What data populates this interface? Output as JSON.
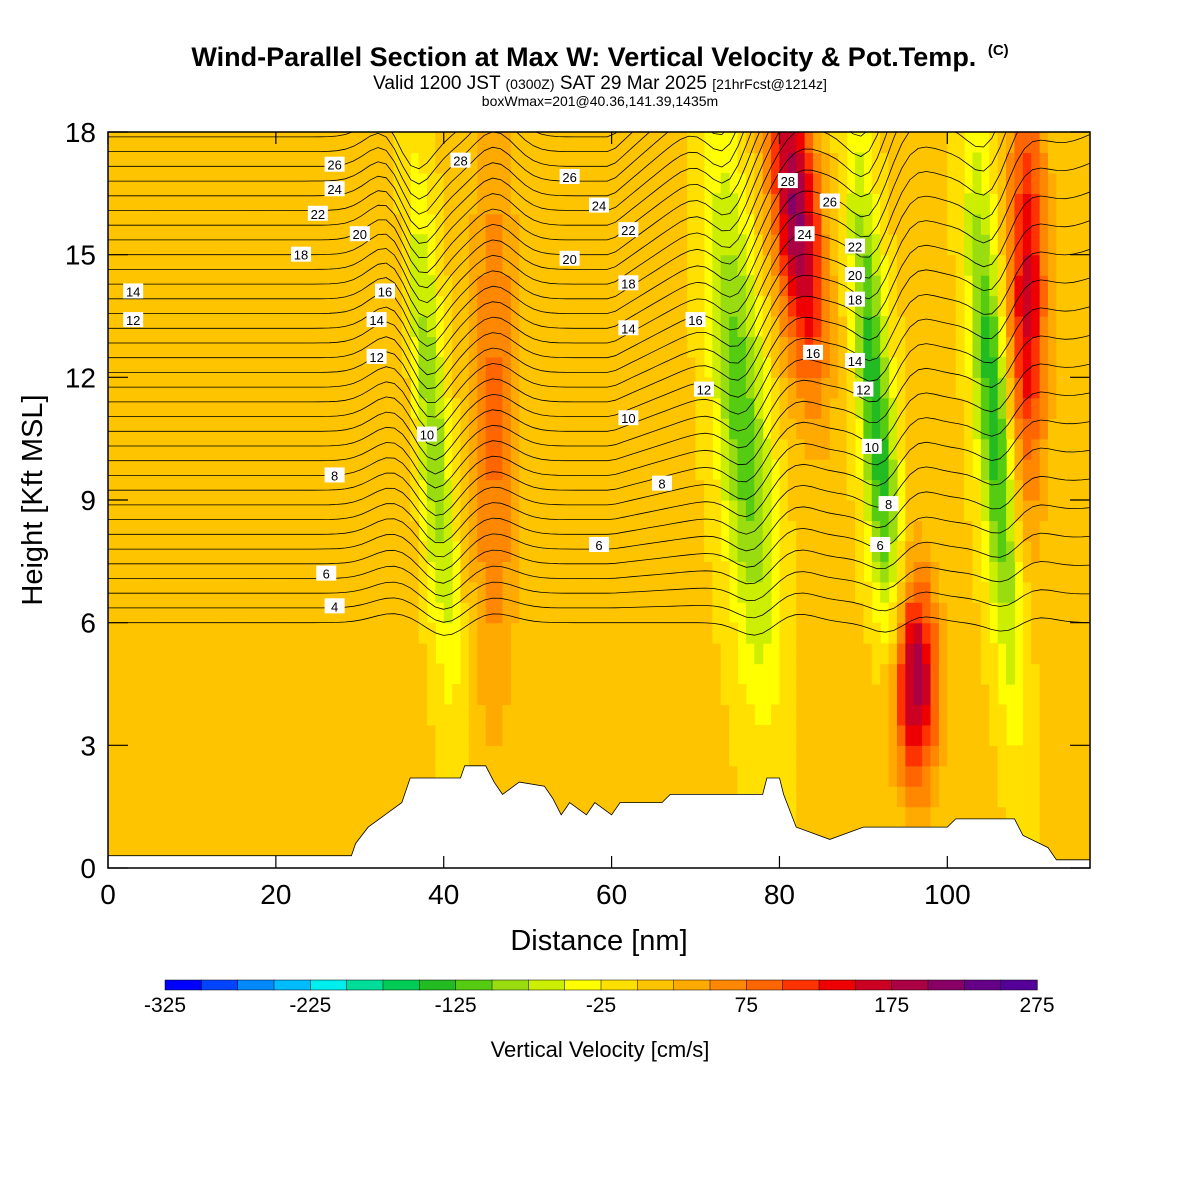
{
  "header": {
    "title": "Wind-Parallel Section at Max W: Vertical Velocity & Pot.Temp.",
    "title_mark": "(C)",
    "valid_prefix": "Valid 1200 JST",
    "valid_utc": "(0300Z)",
    "valid_date": "SAT 29 Mar 2025",
    "forecast": "[21hrFcst@1214z]",
    "boxwmax": "boxWmax=201@40.36,141.39,1435m"
  },
  "chart_data": {
    "type": "heatmap",
    "xlabel": "Distance [nm]",
    "ylabel": "Height [Kft MSL]",
    "xlim": [
      0,
      117
    ],
    "ylim": [
      0,
      18
    ],
    "x_ticks": [
      "0",
      "20",
      "40",
      "60",
      "80",
      "100"
    ],
    "x_tick_values": [
      0,
      20,
      40,
      60,
      80,
      100
    ],
    "y_ticks": [
      "0",
      "3",
      "6",
      "9",
      "12",
      "15",
      "18"
    ],
    "y_tick_values": [
      0,
      3,
      6,
      9,
      12,
      15,
      18
    ],
    "colorbar": {
      "title": "Vertical Velocity [cm/s]",
      "labels": [
        "-325",
        "-225",
        "-125",
        "-25",
        "75",
        "175",
        "275"
      ],
      "label_values": [
        -325,
        -225,
        -125,
        -25,
        75,
        175,
        275
      ],
      "range": [
        -325,
        275
      ],
      "colors": [
        "#0000ff",
        "#0044ff",
        "#0088ff",
        "#00bbff",
        "#00eeee",
        "#00dd99",
        "#00cc55",
        "#22bb22",
        "#55cc11",
        "#99dd11",
        "#ccee00",
        "#ffff00",
        "#ffe000",
        "#ffc400",
        "#ffaa00",
        "#ff8800",
        "#ff6600",
        "#ff3300",
        "#ee0000",
        "#cc0022",
        "#aa0044",
        "#880066",
        "#660088",
        "#550099"
      ]
    },
    "updraft_bands_nm": [
      {
        "x0": 32,
        "x1": 36,
        "peak": 20
      },
      {
        "x0": 44,
        "x1": 48,
        "peak": 75
      },
      {
        "x0": 80,
        "x1": 84,
        "peak": 200
      },
      {
        "x0": 94,
        "x1": 98,
        "peak": 201
      },
      {
        "x0": 108,
        "x1": 111,
        "peak": 150
      }
    ],
    "downdraft_bands_nm": [
      {
        "x0": 37,
        "x1": 40,
        "peak": -100
      },
      {
        "x0": 73,
        "x1": 78,
        "peak": -125
      },
      {
        "x0": 90,
        "x1": 93,
        "peak": -150
      },
      {
        "x0": 104,
        "x1": 107,
        "peak": -150
      }
    ],
    "terrain_kft": [
      [
        0,
        0.3
      ],
      [
        29,
        0.3
      ],
      [
        29.5,
        0.6
      ],
      [
        31,
        1.0
      ],
      [
        33,
        1.3
      ],
      [
        35,
        1.6
      ],
      [
        36,
        2.2
      ],
      [
        42,
        2.2
      ],
      [
        42.5,
        2.5
      ],
      [
        45,
        2.5
      ],
      [
        46,
        2.1
      ],
      [
        47,
        1.8
      ],
      [
        49,
        2.1
      ],
      [
        52,
        2.0
      ],
      [
        53,
        1.7
      ],
      [
        54,
        1.3
      ],
      [
        55,
        1.6
      ],
      [
        57,
        1.3
      ],
      [
        58,
        1.6
      ],
      [
        60,
        1.3
      ],
      [
        61,
        1.6
      ],
      [
        66,
        1.6
      ],
      [
        67,
        1.8
      ],
      [
        78,
        1.8
      ],
      [
        78.5,
        2.2
      ],
      [
        80,
        2.2
      ],
      [
        80.5,
        1.8
      ],
      [
        82,
        1.0
      ],
      [
        86,
        0.7
      ],
      [
        90,
        1.0
      ],
      [
        100,
        1.0
      ],
      [
        101,
        1.2
      ],
      [
        108,
        1.2
      ],
      [
        109,
        0.8
      ],
      [
        112,
        0.5
      ],
      [
        113,
        0.2
      ],
      [
        117,
        0.2
      ]
    ],
    "theta_contour_labels": [
      {
        "x": 27,
        "y": 17.2,
        "label": "26"
      },
      {
        "x": 42,
        "y": 17.3,
        "label": "28"
      },
      {
        "x": 55,
        "y": 16.9,
        "label": "26"
      },
      {
        "x": 27,
        "y": 16.6,
        "label": "24"
      },
      {
        "x": 58.5,
        "y": 16.2,
        "label": "24"
      },
      {
        "x": 25,
        "y": 16.0,
        "label": "22"
      },
      {
        "x": 62,
        "y": 15.6,
        "label": "22"
      },
      {
        "x": 30,
        "y": 15.5,
        "label": "20"
      },
      {
        "x": 55,
        "y": 14.9,
        "label": "20"
      },
      {
        "x": 23,
        "y": 15.0,
        "label": "18"
      },
      {
        "x": 62,
        "y": 14.3,
        "label": "18"
      },
      {
        "x": 3,
        "y": 14.1,
        "label": "14"
      },
      {
        "x": 33,
        "y": 14.1,
        "label": "16"
      },
      {
        "x": 3,
        "y": 13.4,
        "label": "12"
      },
      {
        "x": 32,
        "y": 13.4,
        "label": "14"
      },
      {
        "x": 62,
        "y": 13.2,
        "label": "14"
      },
      {
        "x": 70,
        "y": 13.4,
        "label": "16"
      },
      {
        "x": 32,
        "y": 12.5,
        "label": "12"
      },
      {
        "x": 71,
        "y": 11.7,
        "label": "12"
      },
      {
        "x": 62,
        "y": 11.0,
        "label": "10"
      },
      {
        "x": 38,
        "y": 10.6,
        "label": "10"
      },
      {
        "x": 27,
        "y": 9.6,
        "label": "8"
      },
      {
        "x": 66,
        "y": 9.4,
        "label": "8"
      },
      {
        "x": 58.5,
        "y": 7.9,
        "label": "6"
      },
      {
        "x": 26,
        "y": 7.2,
        "label": "6"
      },
      {
        "x": 27,
        "y": 6.4,
        "label": "4"
      },
      {
        "x": 81,
        "y": 16.8,
        "label": "28"
      },
      {
        "x": 86,
        "y": 16.3,
        "label": "26"
      },
      {
        "x": 83,
        "y": 15.5,
        "label": "24"
      },
      {
        "x": 89,
        "y": 15.2,
        "label": "22"
      },
      {
        "x": 89,
        "y": 14.5,
        "label": "20"
      },
      {
        "x": 89,
        "y": 13.9,
        "label": "18"
      },
      {
        "x": 84,
        "y": 12.6,
        "label": "16"
      },
      {
        "x": 89,
        "y": 12.4,
        "label": "14"
      },
      {
        "x": 90,
        "y": 11.7,
        "label": "12"
      },
      {
        "x": 91,
        "y": 10.3,
        "label": "10"
      },
      {
        "x": 93,
        "y": 8.9,
        "label": "8"
      },
      {
        "x": 92,
        "y": 7.9,
        "label": "6"
      }
    ]
  }
}
